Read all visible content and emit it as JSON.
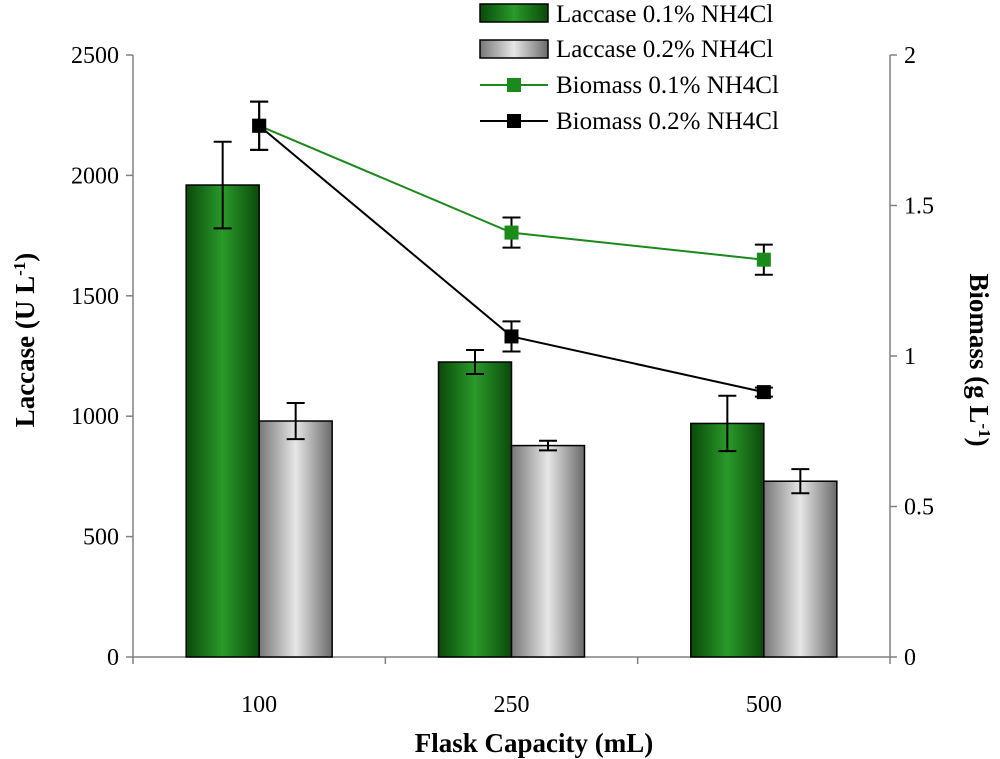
{
  "chart_data": {
    "type": "bar+line",
    "categories": [
      "100",
      "250",
      "500"
    ],
    "xlabel": "Flask Capacity (mL)",
    "ylabel_left": {
      "main": "Laccase (U L",
      "sup": "-1",
      "close": ")"
    },
    "ylabel_right": {
      "main": "Biomass (g  L",
      "sup": "-1",
      "close": ")"
    },
    "ylim_left": [
      0,
      2500
    ],
    "yticks_left": [
      0,
      500,
      1000,
      1500,
      2000,
      2500
    ],
    "ylim_right": [
      0,
      2
    ],
    "yticks_right": [
      0,
      0.5,
      1,
      1.5,
      2
    ],
    "ytick_labels_right": [
      "0",
      "0.5",
      "1",
      "1.5",
      "2"
    ],
    "bar_series": [
      {
        "name": "Laccase 0.1% NH4Cl",
        "color": "#1a7a1a",
        "values": [
          1960,
          1225,
          970
        ],
        "errors": [
          180,
          50,
          115
        ]
      },
      {
        "name": "Laccase 0.2% NH4Cl",
        "color": "#b8b8b8",
        "values": [
          980,
          878,
          730
        ],
        "errors": [
          75,
          20,
          50
        ]
      }
    ],
    "line_series": [
      {
        "name": "Biomass 0.1% NH4Cl",
        "color": "#1a8a1a",
        "values": [
          1.765,
          1.41,
          1.32
        ],
        "errors": [
          0.08,
          0.05,
          0.05
        ]
      },
      {
        "name": "Biomass 0.2% NH4Cl",
        "color": "#000000",
        "values": [
          1.765,
          1.065,
          0.88
        ],
        "errors": [
          0.08,
          0.05,
          0.015
        ]
      }
    ],
    "legend_position": "top-right"
  }
}
